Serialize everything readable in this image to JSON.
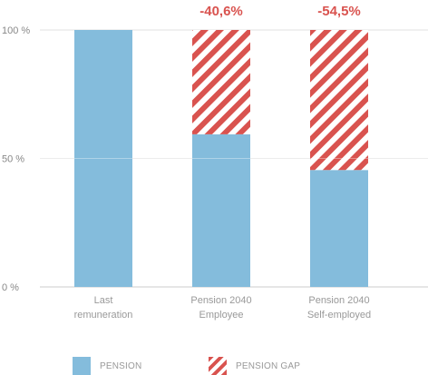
{
  "chart_data": {
    "type": "bar",
    "stacked": true,
    "categories": [
      [
        "Last",
        "remuneration"
      ],
      [
        "Pension 2040",
        "Employee"
      ],
      [
        "Pension 2040",
        "Self-employed"
      ]
    ],
    "series": [
      {
        "name": "PENSION",
        "values": [
          100,
          59.4,
          45.5
        ],
        "color": "#84bcdc"
      },
      {
        "name": "PENSION GAP",
        "values": [
          0,
          40.6,
          54.5
        ],
        "color": "#d9534f",
        "pattern": "diagonal-hatch"
      }
    ],
    "gap_labels": [
      "",
      "-40,6%",
      "-54,5%"
    ],
    "y_ticks": [
      {
        "value": 0,
        "label": "0 %"
      },
      {
        "value": 50,
        "label": "50 %"
      },
      {
        "value": 100,
        "label": "100 %"
      }
    ],
    "ylim": [
      0,
      100
    ],
    "grid": "horizontal",
    "legend": "bottom"
  },
  "legend": {
    "pension_label": "PENSION",
    "gap_label": "PENSION GAP"
  }
}
